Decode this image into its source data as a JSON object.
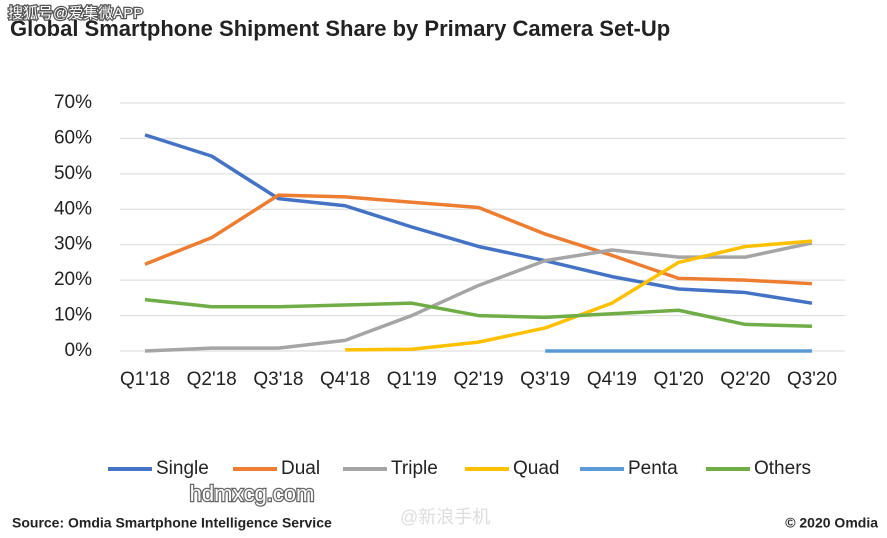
{
  "chart_data": {
    "type": "line",
    "title": "Global Smartphone Shipment Share by Primary Camera Set-Up",
    "categories": [
      "Q1'18",
      "Q2'18",
      "Q3'18",
      "Q4'18",
      "Q1'19",
      "Q2'19",
      "Q3'19",
      "Q4'19",
      "Q1'20",
      "Q2'20",
      "Q3'20"
    ],
    "series": [
      {
        "name": "Single",
        "color": "#4472c4",
        "values": [
          61,
          55,
          43,
          41,
          35,
          29.5,
          25.5,
          21,
          17.5,
          16.5,
          13.5
        ]
      },
      {
        "name": "Dual",
        "color": "#ed7d31",
        "values": [
          24.5,
          32,
          44,
          43.5,
          42,
          40.5,
          33,
          27,
          20.5,
          20,
          19
        ]
      },
      {
        "name": "Triple",
        "color": "#a5a5a5",
        "values": [
          0,
          0.8,
          0.8,
          3,
          10,
          18.5,
          25.5,
          28.5,
          26.5,
          26.5,
          30.5
        ]
      },
      {
        "name": "Quad",
        "color": "#ffc000",
        "values": [
          null,
          null,
          null,
          0.3,
          0.5,
          2.5,
          6.5,
          13.5,
          25,
          29.5,
          31
        ]
      },
      {
        "name": "Penta",
        "color": "#5b9bd5",
        "values": [
          null,
          null,
          null,
          null,
          null,
          null,
          0,
          0,
          0,
          0,
          0
        ]
      },
      {
        "name": "Others",
        "color": "#70ad47",
        "values": [
          14.5,
          12.5,
          12.5,
          13,
          13.5,
          10,
          9.5,
          10.5,
          11.5,
          7.5,
          7
        ]
      }
    ],
    "ylim": [
      0,
      70
    ],
    "yticks": [
      {
        "value": 0,
        "label": "0%"
      },
      {
        "value": 10,
        "label": "10%"
      },
      {
        "value": 20,
        "label": "20%"
      },
      {
        "value": 30,
        "label": "30%"
      },
      {
        "value": 40,
        "label": "40%"
      },
      {
        "value": 50,
        "label": "50%"
      },
      {
        "value": 60,
        "label": "60%"
      },
      {
        "value": 70,
        "label": "70%"
      }
    ],
    "grid": true,
    "legend": "bottom",
    "source": "Source: Omdia Smartphone Intelligence Service",
    "copyright": "© 2020 Omdia",
    "watermarks": [
      "搜狐号@爱集微APP",
      "hdmxcg.com",
      "@新浪手机"
    ]
  }
}
